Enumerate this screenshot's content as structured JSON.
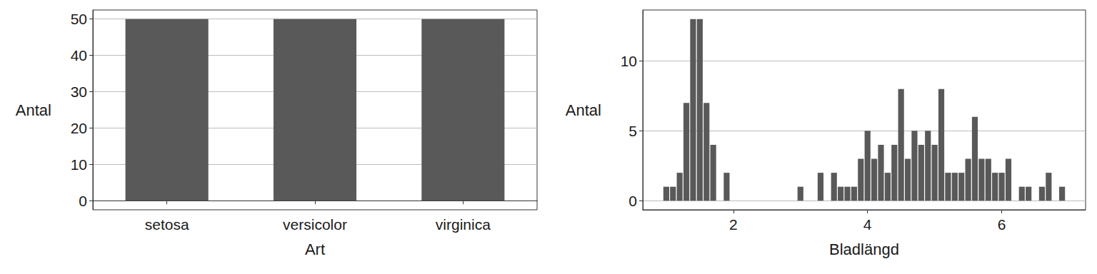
{
  "chart_data": [
    {
      "type": "bar",
      "x_label": "Art",
      "y_label": "Antal",
      "categories": [
        "setosa",
        "versicolor",
        "virginica"
      ],
      "values": [
        50,
        50,
        50
      ],
      "color": "#595959",
      "ylim": [
        -2.5,
        52.5
      ],
      "yticks": [
        0,
        10,
        20,
        30,
        40,
        50
      ],
      "grid": true
    },
    {
      "type": "histogram",
      "x_label": "Bladlängd",
      "y_label": "Antal",
      "bins": [
        0.95,
        1.05,
        1.15,
        1.25,
        1.35,
        1.45,
        1.55,
        1.65,
        1.75,
        1.85,
        1.95,
        2.05,
        2.15,
        2.25,
        2.35,
        2.45,
        2.55,
        2.65,
        2.75,
        2.85,
        2.95,
        3.05,
        3.15,
        3.25,
        3.35,
        3.45,
        3.55,
        3.65,
        3.75,
        3.85,
        3.95,
        4.05,
        4.15,
        4.25,
        4.35,
        4.45,
        4.55,
        4.65,
        4.75,
        4.85,
        4.95,
        5.05,
        5.15,
        5.25,
        5.35,
        5.45,
        5.55,
        5.65,
        5.75,
        5.85,
        5.95,
        6.05,
        6.15,
        6.25,
        6.35,
        6.45,
        6.55,
        6.65,
        6.75,
        6.85,
        6.95
      ],
      "values": [
        1,
        1,
        2,
        7,
        13,
        13,
        7,
        4,
        0,
        2,
        0,
        0,
        0,
        0,
        0,
        0,
        0,
        0,
        0,
        0,
        1,
        0,
        0,
        2,
        0,
        2,
        1,
        1,
        1,
        3,
        5,
        3,
        4,
        2,
        4,
        8,
        3,
        5,
        4,
        5,
        4,
        8,
        2,
        2,
        2,
        3,
        6,
        3,
        3,
        2,
        2,
        3,
        0,
        1,
        1,
        0,
        1,
        2,
        0,
        1
      ],
      "color": "#595959",
      "xlim": [
        0.65,
        7.25
      ],
      "xticks": [
        2,
        4,
        6
      ],
      "ylim": [
        -0.65,
        13.65
      ],
      "yticks": [
        0,
        5,
        10
      ],
      "grid": true
    }
  ]
}
